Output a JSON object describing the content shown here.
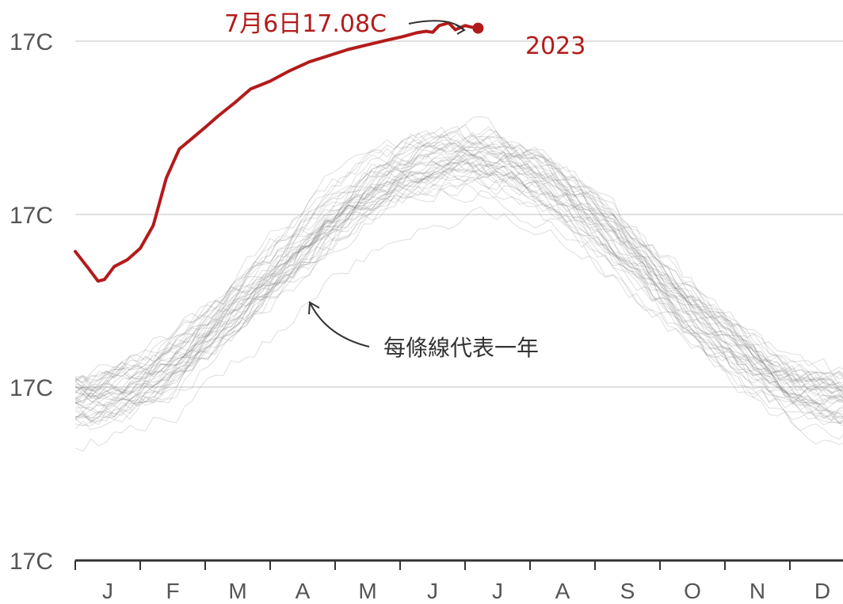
{
  "chart_data": {
    "type": "line",
    "title": "",
    "xlabel": "",
    "ylabel": "",
    "x_categories": [
      "J",
      "F",
      "M",
      "A",
      "M",
      "J",
      "J",
      "A",
      "S",
      "O",
      "N",
      "D"
    ],
    "y_ticks": [
      "17C",
      "17C",
      "17C",
      "17C"
    ],
    "grid": true,
    "background_series": {
      "description_count": 44,
      "color": "#777777"
    },
    "highlight_series": {
      "name": "2023",
      "color": "#b31b1b",
      "x_month": [
        0.0,
        0.2,
        0.35,
        0.45,
        0.6,
        0.8,
        1.0,
        1.2,
        1.4,
        1.6,
        1.8,
        2.0,
        2.2,
        2.45,
        2.7,
        3.0,
        3.3,
        3.6,
        3.9,
        4.2,
        4.5,
        4.8,
        5.05,
        5.25,
        5.4,
        5.5,
        5.6,
        5.75,
        5.85,
        6.0,
        6.1,
        6.2
      ],
      "y_rel": [
        0.595,
        0.563,
        0.538,
        0.541,
        0.566,
        0.579,
        0.601,
        0.645,
        0.736,
        0.792,
        0.813,
        0.834,
        0.856,
        0.881,
        0.908,
        0.923,
        0.943,
        0.96,
        0.972,
        0.984,
        0.993,
        1.002,
        1.009,
        1.016,
        1.019,
        1.017,
        1.03,
        1.035,
        1.022,
        1.03,
        1.027,
        1.025
      ]
    },
    "annotations": [
      {
        "text": "7月6日17.08C"
      },
      {
        "text": "2023"
      },
      {
        "text": "每條線代表一年"
      }
    ]
  }
}
